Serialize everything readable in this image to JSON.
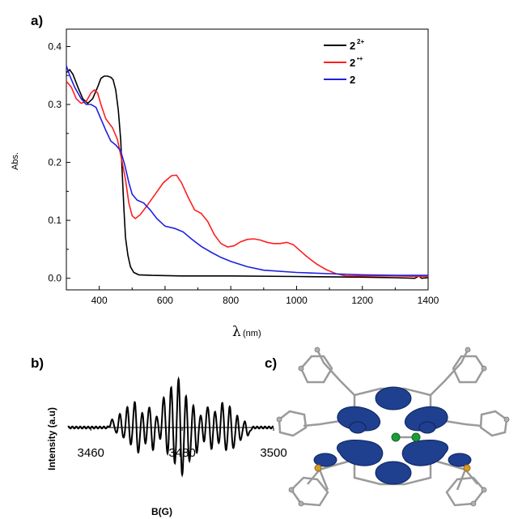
{
  "panels": {
    "a": "a)",
    "b": "b)",
    "c": "c)"
  },
  "chart_data": [
    {
      "type": "line",
      "panel": "a)",
      "title": "",
      "xlabel_symbol": "λ",
      "xlabel_unit": "(nm)",
      "ylabel": "Abs.",
      "xlim": [
        300,
        1400
      ],
      "ylim": [
        -0.02,
        0.43
      ],
      "xticks": [
        400,
        600,
        800,
        1000,
        1200,
        1400
      ],
      "yticks": [
        0.0,
        0.1,
        0.2,
        0.3,
        0.4
      ],
      "ytick_labels": [
        "0.0",
        "0.1",
        "0.2",
        "0.3",
        "0.4"
      ],
      "legend_position": "top-right",
      "series": [
        {
          "name": "2",
          "superscript": "2+",
          "color": "#000000",
          "points": [
            [
              300,
              0.355
            ],
            [
              310,
              0.36
            ],
            [
              320,
              0.352
            ],
            [
              335,
              0.33
            ],
            [
              350,
              0.31
            ],
            [
              365,
              0.302
            ],
            [
              380,
              0.31
            ],
            [
              395,
              0.33
            ],
            [
              405,
              0.345
            ],
            [
              415,
              0.349
            ],
            [
              425,
              0.349
            ],
            [
              435,
              0.347
            ],
            [
              442,
              0.343
            ],
            [
              450,
              0.325
            ],
            [
              458,
              0.29
            ],
            [
              465,
              0.24
            ],
            [
              470,
              0.18
            ],
            [
              475,
              0.12
            ],
            [
              480,
              0.07
            ],
            [
              487,
              0.04
            ],
            [
              495,
              0.02
            ],
            [
              505,
              0.01
            ],
            [
              520,
              0.006
            ],
            [
              560,
              0.005
            ],
            [
              650,
              0.004
            ],
            [
              800,
              0.004
            ],
            [
              1000,
              0.003
            ],
            [
              1200,
              0.002
            ],
            [
              1300,
              0.001
            ],
            [
              1360,
              0.0
            ],
            [
              1372,
              0.004
            ],
            [
              1380,
              0.0
            ],
            [
              1400,
              0.001
            ]
          ]
        },
        {
          "name": "2",
          "superscript": "•+",
          "color": "#ff1e1e",
          "points": [
            [
              300,
              0.34
            ],
            [
              315,
              0.33
            ],
            [
              330,
              0.31
            ],
            [
              345,
              0.302
            ],
            [
              360,
              0.305
            ],
            [
              375,
              0.32
            ],
            [
              385,
              0.325
            ],
            [
              395,
              0.32
            ],
            [
              405,
              0.3
            ],
            [
              420,
              0.275
            ],
            [
              440,
              0.26
            ],
            [
              455,
              0.24
            ],
            [
              470,
              0.2
            ],
            [
              480,
              0.17
            ],
            [
              490,
              0.13
            ],
            [
              500,
              0.108
            ],
            [
              510,
              0.103
            ],
            [
              525,
              0.11
            ],
            [
              545,
              0.125
            ],
            [
              570,
              0.145
            ],
            [
              595,
              0.165
            ],
            [
              620,
              0.177
            ],
            [
              635,
              0.178
            ],
            [
              650,
              0.165
            ],
            [
              670,
              0.14
            ],
            [
              690,
              0.118
            ],
            [
              710,
              0.112
            ],
            [
              730,
              0.098
            ],
            [
              750,
              0.075
            ],
            [
              770,
              0.06
            ],
            [
              790,
              0.054
            ],
            [
              810,
              0.056
            ],
            [
              830,
              0.063
            ],
            [
              850,
              0.067
            ],
            [
              870,
              0.068
            ],
            [
              890,
              0.066
            ],
            [
              910,
              0.062
            ],
            [
              930,
              0.06
            ],
            [
              950,
              0.06
            ],
            [
              970,
              0.062
            ],
            [
              990,
              0.058
            ],
            [
              1010,
              0.048
            ],
            [
              1030,
              0.038
            ],
            [
              1060,
              0.025
            ],
            [
              1090,
              0.015
            ],
            [
              1120,
              0.008
            ],
            [
              1150,
              0.004
            ],
            [
              1200,
              0.004
            ],
            [
              1300,
              0.004
            ],
            [
              1400,
              0.003
            ]
          ]
        },
        {
          "name": "2",
          "superscript": "",
          "color": "#2020e0",
          "points": [
            [
              300,
              0.367
            ],
            [
              310,
              0.35
            ],
            [
              325,
              0.33
            ],
            [
              345,
              0.31
            ],
            [
              360,
              0.3
            ],
            [
              375,
              0.3
            ],
            [
              390,
              0.295
            ],
            [
              405,
              0.275
            ],
            [
              420,
              0.255
            ],
            [
              435,
              0.237
            ],
            [
              450,
              0.23
            ],
            [
              465,
              0.22
            ],
            [
              478,
              0.195
            ],
            [
              490,
              0.165
            ],
            [
              500,
              0.145
            ],
            [
              515,
              0.135
            ],
            [
              535,
              0.13
            ],
            [
              555,
              0.118
            ],
            [
              575,
              0.103
            ],
            [
              600,
              0.09
            ],
            [
              630,
              0.086
            ],
            [
              655,
              0.08
            ],
            [
              680,
              0.068
            ],
            [
              710,
              0.055
            ],
            [
              740,
              0.045
            ],
            [
              770,
              0.036
            ],
            [
              800,
              0.029
            ],
            [
              850,
              0.02
            ],
            [
              900,
              0.014
            ],
            [
              1000,
              0.01
            ],
            [
              1100,
              0.008
            ],
            [
              1200,
              0.006
            ],
            [
              1300,
              0.005
            ],
            [
              1400,
              0.005
            ]
          ]
        }
      ]
    },
    {
      "type": "line",
      "panel": "b)",
      "title": "",
      "xlabel": "B(G)",
      "ylabel": "Intensity (a.u)",
      "xlim": [
        3455,
        3500
      ],
      "xticks": [
        3460,
        3480,
        3500
      ],
      "legend_position": "none",
      "series": [
        {
          "name": "",
          "color": "#000000",
          "lines": [
            {
              "center": 3465.2,
              "amp": 0.14
            },
            {
              "center": 3466.8,
              "amp": 0.26
            },
            {
              "center": 3468.4,
              "amp": 0.4
            },
            {
              "center": 3470.0,
              "amp": 0.52
            },
            {
              "center": 3471.6,
              "amp": 0.34
            },
            {
              "center": 3473.2,
              "amp": 0.44
            },
            {
              "center": 3474.8,
              "amp": 0.28
            },
            {
              "center": 3476.4,
              "amp": 0.6
            },
            {
              "center": 3478.0,
              "amp": 0.82
            },
            {
              "center": 3479.6,
              "amp": 1.0
            },
            {
              "center": 3481.2,
              "amp": 0.7
            },
            {
              "center": 3482.8,
              "amp": 0.5
            },
            {
              "center": 3484.4,
              "amp": 0.3
            },
            {
              "center": 3486.0,
              "amp": 0.44
            },
            {
              "center": 3487.6,
              "amp": 0.36
            },
            {
              "center": 3489.2,
              "amp": 0.5
            },
            {
              "center": 3490.8,
              "amp": 0.44
            },
            {
              "center": 3492.4,
              "amp": 0.26
            },
            {
              "center": 3494.0,
              "amp": 0.14
            }
          ],
          "linewidth_G": 0.45
        }
      ]
    }
  ],
  "molecule": {
    "panel": "c)",
    "description": ""
  }
}
